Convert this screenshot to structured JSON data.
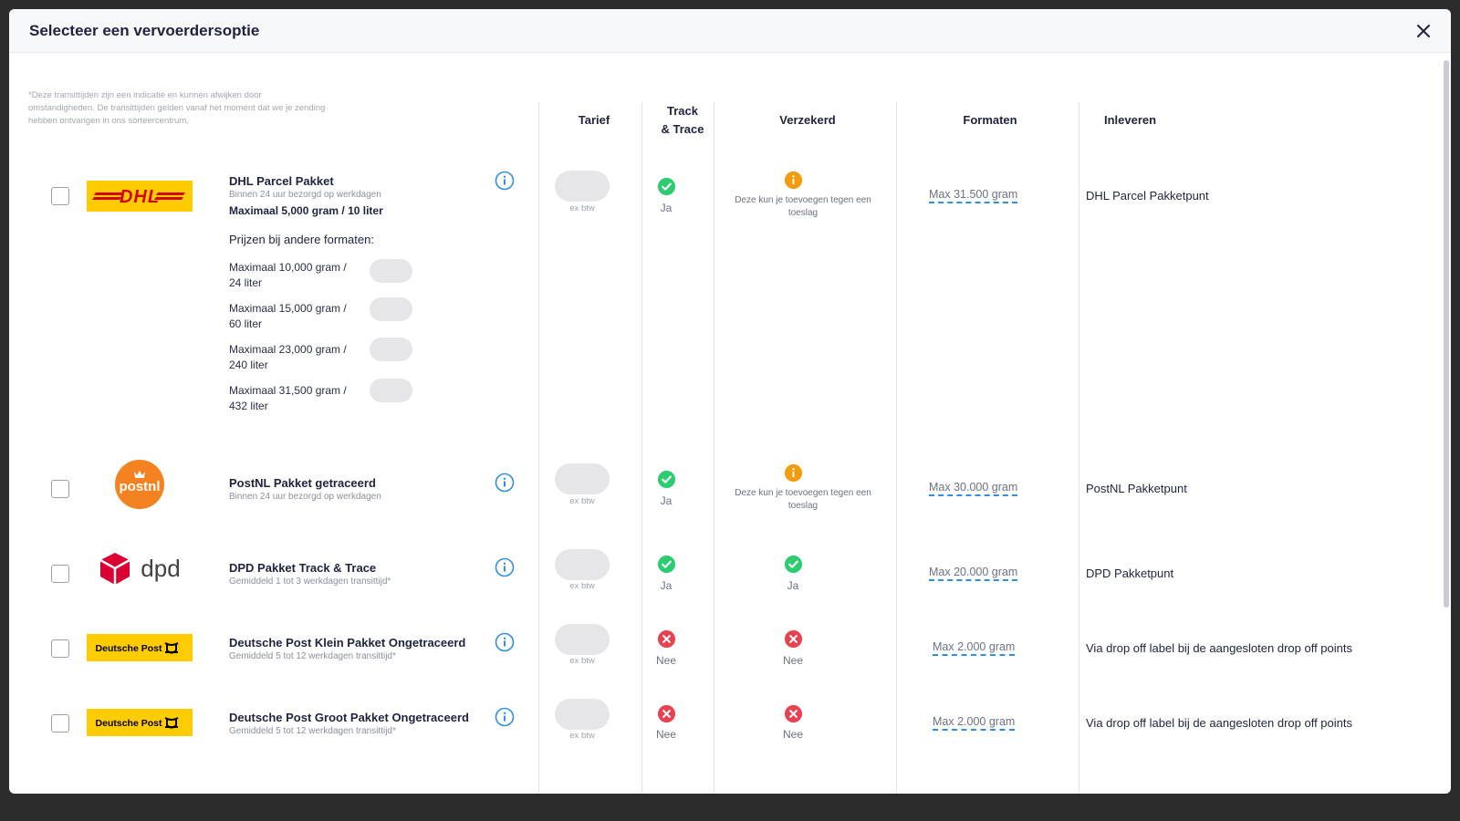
{
  "modal": {
    "title": "Selecteer een vervoerdersoptie"
  },
  "disclaimer": "*Deze transittijden zijn een indicatie en kunnen afwijken door omstandigheden. De transittijden gelden vanaf het moment dat we je zending hebben ontvangen in ons sorteercentrum.",
  "columns": {
    "tarief": "Tarief",
    "track_line1": "Track",
    "track_line2": "& Trace",
    "verzekerd": "Verzekerd",
    "formaten": "Formaten",
    "inleveren": "Inleveren"
  },
  "colors": {
    "accent": "#2e8fe3",
    "success": "#2ecc71",
    "error": "#e8414f",
    "warning": "#f49b0b",
    "brand_yellow": "#ffcc00",
    "dhl_red": "#d40511",
    "postnl_orange": "#f58220",
    "dpd_red": "#dc0032"
  },
  "carriers": [
    {
      "logo": "DHL",
      "name": "DHL Parcel Pakket",
      "delivery": "Binnen 24 uur bezorgd op werkdagen",
      "max_weight": "Maximaal 5,000 gram / 10 liter",
      "other_formats_title": "Prijzen bij andere formaten:",
      "other_formats": [
        {
          "line1": "Maximaal 10,000 gram /",
          "line2": "24 liter"
        },
        {
          "line1": "Maximaal 15,000 gram /",
          "line2": "60 liter"
        },
        {
          "line1": "Maximaal 23,000 gram /",
          "line2": "240 liter"
        },
        {
          "line1": "Maximaal 31,500 gram /",
          "line2": "432 liter"
        }
      ],
      "ex_btw": "ex btw",
      "track": "Ja",
      "verzekerd_note": "Deze kun je toevoegen tegen een toeslag",
      "formaten": "Max 31.500 gram",
      "inleveren": "DHL Parcel Pakketpunt"
    },
    {
      "logo": "postnl",
      "name": "PostNL Pakket getraceerd",
      "delivery": "Binnen 24 uur bezorgd op werkdagen",
      "ex_btw": "ex btw",
      "track": "Ja",
      "verzekerd_note": "Deze kun je toevoegen tegen een toeslag",
      "formaten": "Max 30.000 gram",
      "inleveren": "PostNL Pakketpunt"
    },
    {
      "logo": "dpd",
      "name": "DPD Pakket Track & Trace",
      "delivery": "Gemiddeld 1 tot 3 werkdagen transittijd*",
      "ex_btw": "ex btw",
      "track": "Ja",
      "verzekerd": "Ja",
      "formaten": "Max 20.000 gram",
      "inleveren": "DPD Pakketpunt"
    },
    {
      "logo": "Deutsche Post",
      "name": "Deutsche Post Klein Pakket Ongetraceerd",
      "delivery": "Gemiddeld 5 tot 12 werkdagen transittijd*",
      "ex_btw": "ex btw",
      "track": "Nee",
      "verzekerd": "Nee",
      "formaten": "Max 2.000 gram",
      "inleveren": "Via drop off label bij de aangesloten drop off points"
    },
    {
      "logo": "Deutsche Post",
      "name": "Deutsche Post Groot Pakket Ongetraceerd",
      "delivery": "Gemiddeld 5 tot 12 werkdagen transittijd*",
      "ex_btw": "ex btw",
      "track": "Nee",
      "verzekerd": "Nee",
      "formaten": "Max 2.000 gram",
      "inleveren": "Via drop off label bij de aangesloten drop off points"
    }
  ]
}
